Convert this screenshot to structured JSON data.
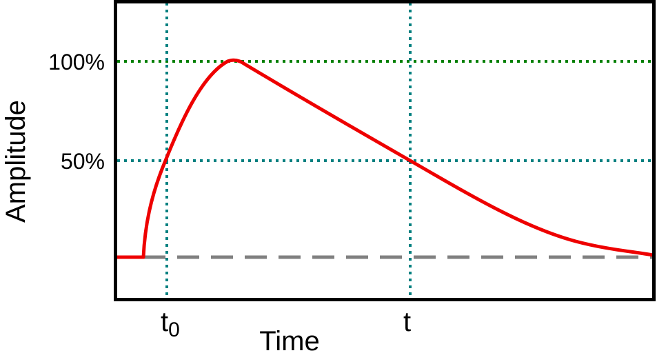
{
  "y_axis": {
    "label": "Amplitude",
    "ticks": [
      "100%",
      "50%"
    ]
  },
  "x_axis": {
    "label": "Time",
    "ticks": [
      {
        "base": "t",
        "sub": "0"
      },
      {
        "base": "t",
        "sub": ""
      }
    ]
  },
  "colors": {
    "pulse": "#ee0000",
    "level_100": "#008000",
    "level_50": "#008080",
    "time_markers": "#008080",
    "baseline": "#808080",
    "frame": "#000000"
  }
}
